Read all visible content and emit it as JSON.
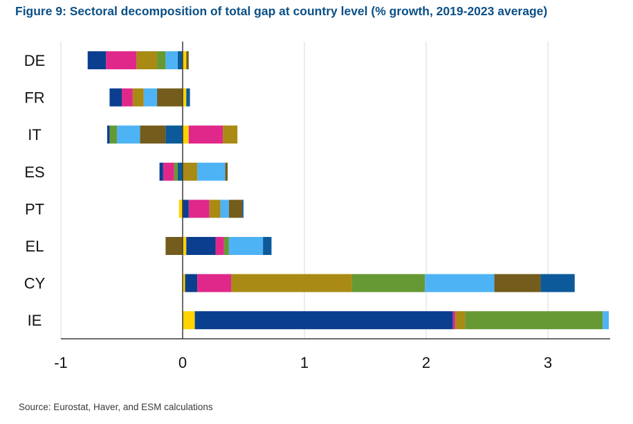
{
  "title": "Figure 9: Sectoral decomposition of total gap at country level (% growth, 2019-2023 average)",
  "source": "Source: Eurostat, Haver, and ESM calculations",
  "chart_data": {
    "type": "bar",
    "orientation": "horizontal",
    "stacked": true,
    "title": "Figure 9: Sectoral decomposition of total gap at country level (% growth, 2019-2023 average)",
    "xlabel": "",
    "ylabel": "",
    "xlim": [
      -1,
      3.5
    ],
    "x_ticks": [
      -1,
      0,
      1,
      2,
      3
    ],
    "grid": "vertical",
    "legend": "none",
    "categories": [
      "DE",
      "FR",
      "IT",
      "ES",
      "PT",
      "EL",
      "CY",
      "IE"
    ],
    "bars": [
      {
        "category": "DE",
        "segments": [
          {
            "color": "#0d5a9a",
            "value": -0.04
          },
          {
            "color": "#4db3f5",
            "value": -0.1
          },
          {
            "color": "#669933",
            "value": -0.07
          },
          {
            "color": "#a88a14",
            "value": -0.17
          },
          {
            "color": "#e0288a",
            "value": -0.25
          },
          {
            "color": "#0a3f8f",
            "value": -0.15
          },
          {
            "color": "#ffd200",
            "value": 0.03
          },
          {
            "color": "#735c1c",
            "value": 0.02
          }
        ]
      },
      {
        "category": "FR",
        "segments": [
          {
            "color": "#735c1c",
            "value": -0.21
          },
          {
            "color": "#4db3f5",
            "value": -0.11
          },
          {
            "color": "#a88a14",
            "value": -0.09
          },
          {
            "color": "#e0288a",
            "value": -0.09
          },
          {
            "color": "#0a3f8f",
            "value": -0.1
          },
          {
            "color": "#ffd200",
            "value": 0.03
          },
          {
            "color": "#0d5a9a",
            "value": 0.03
          }
        ]
      },
      {
        "category": "IT",
        "segments": [
          {
            "color": "#0d5a9a",
            "value": -0.14
          },
          {
            "color": "#735c1c",
            "value": -0.21
          },
          {
            "color": "#4db3f5",
            "value": -0.19
          },
          {
            "color": "#669933",
            "value": -0.06
          },
          {
            "color": "#0a3f8f",
            "value": -0.02
          },
          {
            "color": "#ffd200",
            "value": 0.05
          },
          {
            "color": "#e0288a",
            "value": 0.28
          },
          {
            "color": "#a88a14",
            "value": 0.12
          }
        ]
      },
      {
        "category": "ES",
        "segments": [
          {
            "color": "#0d5a9a",
            "value": -0.04
          },
          {
            "color": "#669933",
            "value": -0.03
          },
          {
            "color": "#e0288a",
            "value": -0.09
          },
          {
            "color": "#0a3f8f",
            "value": -0.03
          },
          {
            "color": "#a88a14",
            "value": 0.12
          },
          {
            "color": "#4db3f5",
            "value": 0.23
          },
          {
            "color": "#735c1c",
            "value": 0.02
          }
        ]
      },
      {
        "category": "PT",
        "segments": [
          {
            "color": "#ffd200",
            "value": -0.03
          },
          {
            "color": "#0a3f8f",
            "value": 0.05
          },
          {
            "color": "#e0288a",
            "value": 0.17
          },
          {
            "color": "#a88a14",
            "value": 0.09
          },
          {
            "color": "#4db3f5",
            "value": 0.07
          },
          {
            "color": "#735c1c",
            "value": 0.11
          },
          {
            "color": "#0d5a9a",
            "value": 0.01
          }
        ]
      },
      {
        "category": "EL",
        "segments": [
          {
            "color": "#735c1c",
            "value": -0.14
          },
          {
            "color": "#ffd200",
            "value": 0.03
          },
          {
            "color": "#0a3f8f",
            "value": 0.24
          },
          {
            "color": "#e0288a",
            "value": 0.07
          },
          {
            "color": "#669933",
            "value": 0.04
          },
          {
            "color": "#4db3f5",
            "value": 0.28
          },
          {
            "color": "#0d5a9a",
            "value": 0.07
          }
        ]
      },
      {
        "category": "CY",
        "segments": [
          {
            "color": "#ffd200",
            "value": 0.02
          },
          {
            "color": "#0a3f8f",
            "value": 0.1
          },
          {
            "color": "#e0288a",
            "value": 0.28
          },
          {
            "color": "#a88a14",
            "value": 0.99
          },
          {
            "color": "#669933",
            "value": 0.6
          },
          {
            "color": "#4db3f5",
            "value": 0.57
          },
          {
            "color": "#735c1c",
            "value": 0.38
          },
          {
            "color": "#0d5a9a",
            "value": 0.28
          }
        ]
      },
      {
        "category": "IE",
        "segments": [
          {
            "color": "#ffd200",
            "value": 0.1
          },
          {
            "color": "#0a3f8f",
            "value": 2.12
          },
          {
            "color": "#e0288a",
            "value": 0.02
          },
          {
            "color": "#a88a14",
            "value": 0.08
          },
          {
            "color": "#669933",
            "value": 1.13
          },
          {
            "color": "#4db3f5",
            "value": 0.05
          }
        ]
      }
    ]
  }
}
